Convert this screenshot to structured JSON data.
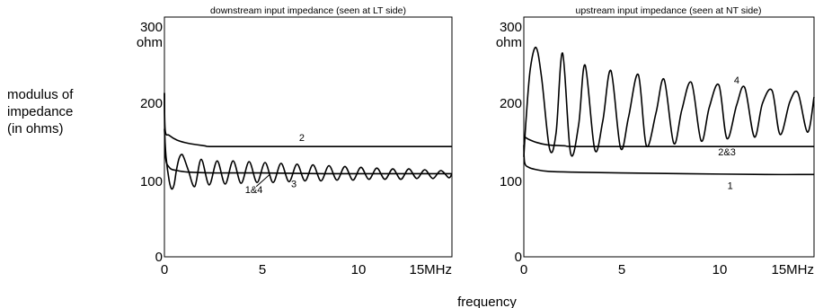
{
  "figure": {
    "side_label": [
      "modulus of",
      "impedance",
      "(in ohms)"
    ],
    "xlabel": "frequency"
  },
  "chart_data": [
    {
      "type": "line",
      "title": "downstream input impedance (seen at LT side)",
      "xlabel": "frequency",
      "ylabel": "modulus of impedance (in ohms)",
      "xlim": [
        0,
        18
      ],
      "ylim": [
        0,
        300
      ],
      "x_ticks": [
        "0",
        "5",
        "10",
        "15MHz"
      ],
      "y_ticks": [
        "0",
        "100",
        "200",
        "300"
      ],
      "y_unit": "ohm",
      "grid": false,
      "series": [
        {
          "name": "2",
          "x": [
            0,
            0.05,
            0.3,
            0.8,
            1.5,
            2.5,
            3,
            6,
            10,
            15,
            18
          ],
          "y": [
            205,
            158,
            152,
            146,
            142,
            139,
            138,
            138,
            138,
            138,
            138
          ]
        },
        {
          "name": "1&4",
          "x": [
            0,
            0.05,
            0.3,
            0.8,
            1.5,
            3,
            6,
            10,
            15,
            18
          ],
          "y": [
            205,
            130,
            112,
            108,
            106,
            105,
            105,
            104,
            104,
            104
          ]
        },
        {
          "name": "3",
          "x": [
            0,
            0.1,
            0.3,
            0.45,
            0.6,
            0.75,
            0.9,
            1.05,
            1.2,
            1.5,
            1.9,
            2.3,
            2.8,
            3.3,
            3.8,
            4.3,
            4.8,
            5.3,
            5.8,
            6.3,
            6.8,
            7.3,
            7.8,
            8.3,
            8.8,
            9.3,
            9.8,
            10.3,
            10.8,
            11.3,
            11.8,
            12.3,
            12.8,
            13.3,
            13.8,
            14.3,
            14.8,
            15.3,
            15.8,
            16.3,
            16.8,
            17.3,
            17.8,
            18
          ],
          "y": [
            160,
            125,
            95,
            85,
            90,
            108,
            122,
            128,
            125,
            108,
            88,
            122,
            90,
            120,
            91,
            120,
            92,
            119,
            93,
            118,
            93,
            117,
            94,
            116,
            95,
            115,
            95,
            114,
            96,
            113,
            96,
            112,
            97,
            111,
            97,
            110,
            97,
            110,
            98,
            109,
            98,
            108,
            99,
            104
          ]
        }
      ],
      "annotations": [
        {
          "text": "2",
          "x": 8.6,
          "y": 145
        },
        {
          "text": "1&4",
          "x": 5.6,
          "y": 80
        },
        {
          "text": "3",
          "x": 8.1,
          "y": 87
        }
      ]
    },
    {
      "type": "line",
      "title": "upstream input impedance (seen at NT side)",
      "xlabel": "frequency",
      "ylabel": "modulus of impedance (in ohms)",
      "xlim": [
        0,
        18
      ],
      "ylim": [
        0,
        300
      ],
      "x_ticks": [
        "0",
        "5",
        "10",
        "15MHz"
      ],
      "y_ticks": [
        "0",
        "100",
        "200",
        "300"
      ],
      "y_unit": "ohm",
      "grid": false,
      "series": [
        {
          "name": "4",
          "x": [
            0,
            0.15,
            0.4,
            0.75,
            1.1,
            1.6,
            2.0,
            2.4,
            2.9,
            3.4,
            3.8,
            4.4,
            4.9,
            5.4,
            6.0,
            6.5,
            7.1,
            7.6,
            8.2,
            8.7,
            9.3,
            9.8,
            10.4,
            11.0,
            11.5,
            12.1,
            12.6,
            13.2,
            13.7,
            14.3,
            14.8,
            15.4,
            15.9,
            16.5,
            17.0,
            17.6,
            18
          ],
          "y": [
            125,
            175,
            235,
            262,
            225,
            135,
            155,
            255,
            130,
            165,
            240,
            134,
            170,
            233,
            136,
            175,
            228,
            139,
            180,
            222,
            142,
            184,
            218,
            145,
            187,
            215,
            148,
            190,
            212,
            150,
            192,
            208,
            153,
            194,
            205,
            156,
            200
          ]
        },
        {
          "name": "2&3",
          "x": [
            0,
            0.05,
            0.3,
            0.8,
            1.5,
            2.5,
            3,
            6,
            10,
            15,
            18
          ],
          "y": [
            150,
            150,
            147,
            143,
            140,
            139,
            138,
            138,
            138,
            138,
            138
          ]
        },
        {
          "name": "1",
          "x": [
            0,
            0.05,
            0.3,
            0.8,
            1.5,
            3,
            6,
            10,
            15,
            18
          ],
          "y": [
            140,
            118,
            112,
            109,
            107,
            106,
            105,
            104,
            103,
            103
          ]
        }
      ],
      "annotations": [
        {
          "text": "4",
          "x": 13.2,
          "y": 217
        },
        {
          "text": "2&3",
          "x": 12.6,
          "y": 127
        },
        {
          "text": "1",
          "x": 12.8,
          "y": 85
        }
      ]
    }
  ]
}
